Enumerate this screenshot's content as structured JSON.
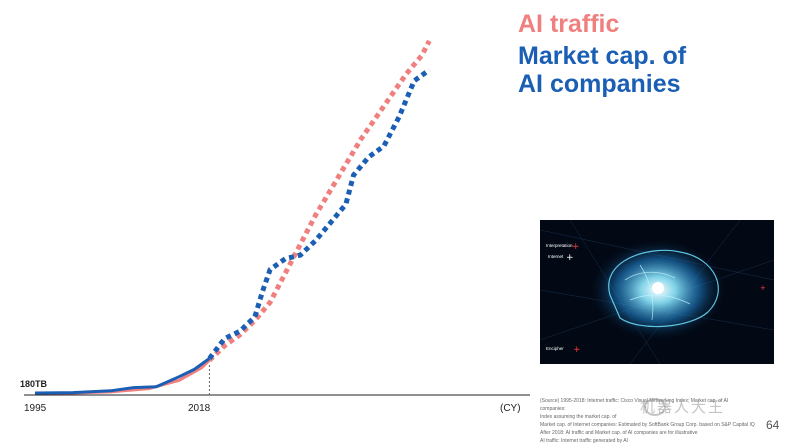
{
  "chart_data": {
    "type": "line",
    "x_unit": "(CY)",
    "x_ticks": [
      "1995",
      "2018"
    ],
    "x_tick_years": [
      1995,
      2018
    ],
    "x_range": [
      1995,
      2055
    ],
    "start_label": "180TB",
    "y_range": [
      0,
      100
    ],
    "series": [
      {
        "name": "AI traffic",
        "color": "#f08080",
        "points": [
          [
            1995,
            0
          ],
          [
            2000,
            0
          ],
          [
            2005,
            0.3
          ],
          [
            2010,
            1.2
          ],
          [
            2014,
            3.5
          ],
          [
            2017,
            7
          ],
          [
            2018,
            9
          ],
          [
            2020,
            13
          ],
          [
            2022,
            16
          ],
          [
            2024,
            20
          ],
          [
            2026,
            25
          ],
          [
            2028,
            33
          ],
          [
            2030,
            41
          ],
          [
            2032,
            49
          ],
          [
            2034,
            56
          ],
          [
            2036,
            63
          ],
          [
            2038,
            70
          ],
          [
            2040,
            76
          ],
          [
            2042,
            82
          ],
          [
            2044,
            88
          ],
          [
            2046,
            93
          ],
          [
            2047,
            97
          ]
        ]
      },
      {
        "name": "Market cap. of AI companies",
        "color": "#1a5fb4",
        "points": [
          [
            1995,
            0
          ],
          [
            2000,
            0.1
          ],
          [
            2005,
            0.6
          ],
          [
            2008,
            1.5
          ],
          [
            2011,
            1.7
          ],
          [
            2014,
            4.5
          ],
          [
            2016,
            6.5
          ],
          [
            2018,
            9.5
          ],
          [
            2020,
            15
          ],
          [
            2022,
            17
          ],
          [
            2024,
            21
          ],
          [
            2025,
            28
          ],
          [
            2026,
            34
          ],
          [
            2028,
            37
          ],
          [
            2030,
            38
          ],
          [
            2032,
            42
          ],
          [
            2034,
            47
          ],
          [
            2036,
            52
          ],
          [
            2037,
            60
          ],
          [
            2039,
            65
          ],
          [
            2041,
            68
          ],
          [
            2043,
            76
          ],
          [
            2045,
            86
          ],
          [
            2047,
            89
          ]
        ]
      }
    ],
    "legend": [
      "AI traffic",
      "Market cap. of AI companies"
    ],
    "grid": false
  },
  "source_note": [
    "(Source) 1995-2018: Internet traffic: Cisco Visual Networking Index; Market cap. of AI companies:",
    "Index assuming the market cap. of",
    "Market cap. of Internet companies: Estimated by SoftBank Group Corp. based on S&P Capital IQ",
    "After 2018: AI traffic and Market cap. of AI companies are for illustrative",
    "AI traffic: Internet traffic generated by AI"
  ],
  "page_number": "64",
  "watermark": "机器人大王",
  "photo": {
    "labels": [
      "Interpretation",
      "Internet",
      "Encipher"
    ],
    "colors": {
      "red": "#ff3b3b",
      "glow": "#4fd8ff",
      "bg": "#020814"
    }
  }
}
